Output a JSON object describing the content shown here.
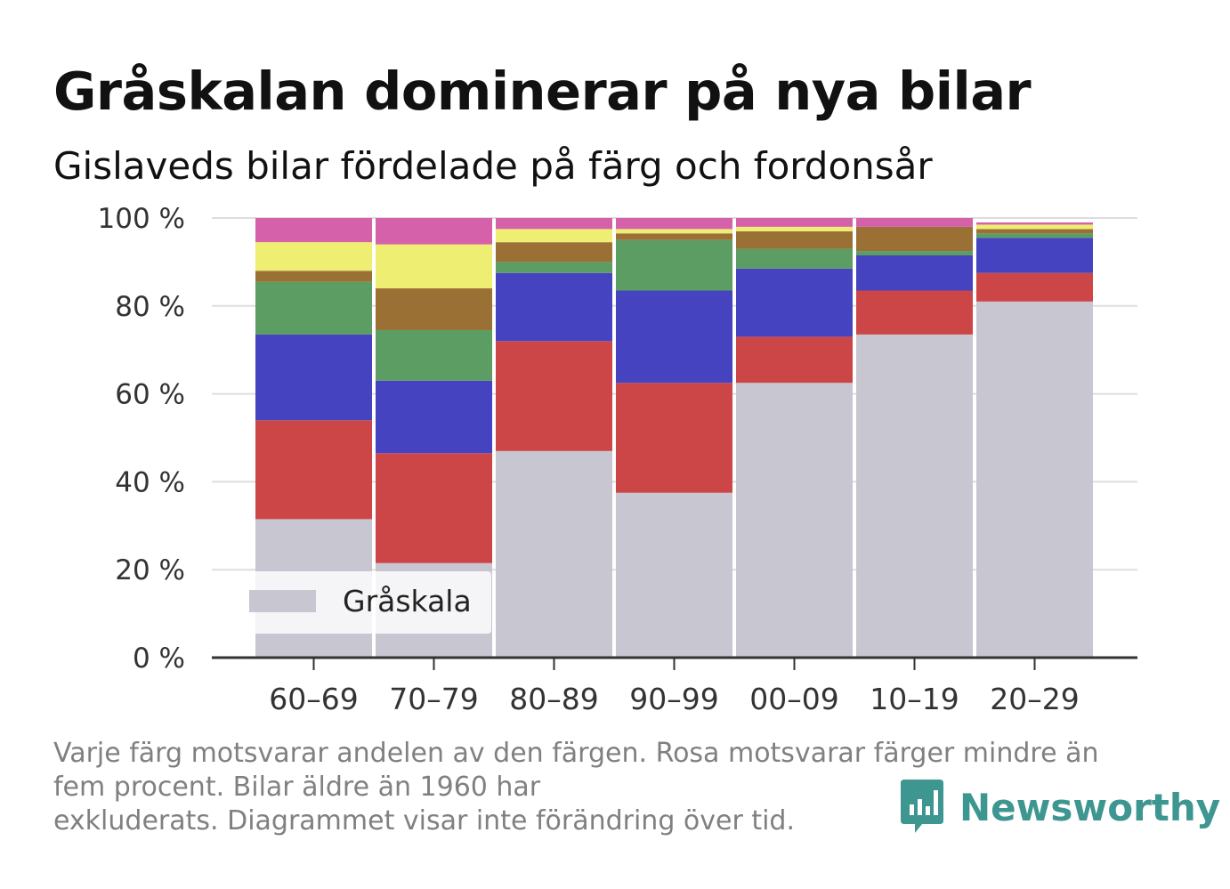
{
  "title": "Gråskalan dominerar på nya bilar",
  "subtitle": "Gislaveds bilar fördelade på färg och fordonsår",
  "footnote": {
    "line1": "Varje färg motsvarar andelen av den färgen. Rosa motsvarar färger mindre än",
    "line2": "fem procent. Bilar äldre än 1960 har",
    "line3": "exkluderats. Diagrammet visar inte förändring över tid."
  },
  "brand": {
    "name": "Newsworthy",
    "color": "#3d9690"
  },
  "chart_data": {
    "type": "bar",
    "stacked": true,
    "categories": [
      "60–69",
      "70–79",
      "80–89",
      "90–99",
      "00–09",
      "10–19",
      "20–29"
    ],
    "y_ticks": [
      "0 %",
      "20 %",
      "40 %",
      "60 %",
      "80 %",
      "100 %"
    ],
    "ylim": [
      0,
      100
    ],
    "grid": true,
    "legend": {
      "placement": "bottom-left",
      "entries": [
        "Gråskala"
      ]
    },
    "series": [
      {
        "name": "Gråskala",
        "color": "#c8c6d1",
        "values": [
          31.5,
          21.5,
          47,
          37.5,
          62.5,
          73.5,
          81
        ]
      },
      {
        "color": "#cd4647",
        "values": [
          22.5,
          25,
          25,
          25,
          10.5,
          10,
          6.5
        ]
      },
      {
        "color": "#4543c0",
        "values": [
          19.5,
          16.5,
          15.5,
          21,
          15.5,
          8,
          8
        ]
      },
      {
        "color": "#5b9d63",
        "values": [
          12,
          11.5,
          2.5,
          11.5,
          4.5,
          1,
          1
        ]
      },
      {
        "color": "#9b7035",
        "values": [
          2.5,
          9.5,
          4.5,
          1.5,
          4,
          5.5,
          1
        ]
      },
      {
        "color": "#eeee72",
        "values": [
          6.5,
          10,
          3,
          1,
          1,
          0,
          1
        ]
      },
      {
        "color": "#d661ab",
        "values": [
          5.5,
          6,
          2.5,
          2.5,
          2,
          2,
          0.5
        ]
      }
    ]
  }
}
